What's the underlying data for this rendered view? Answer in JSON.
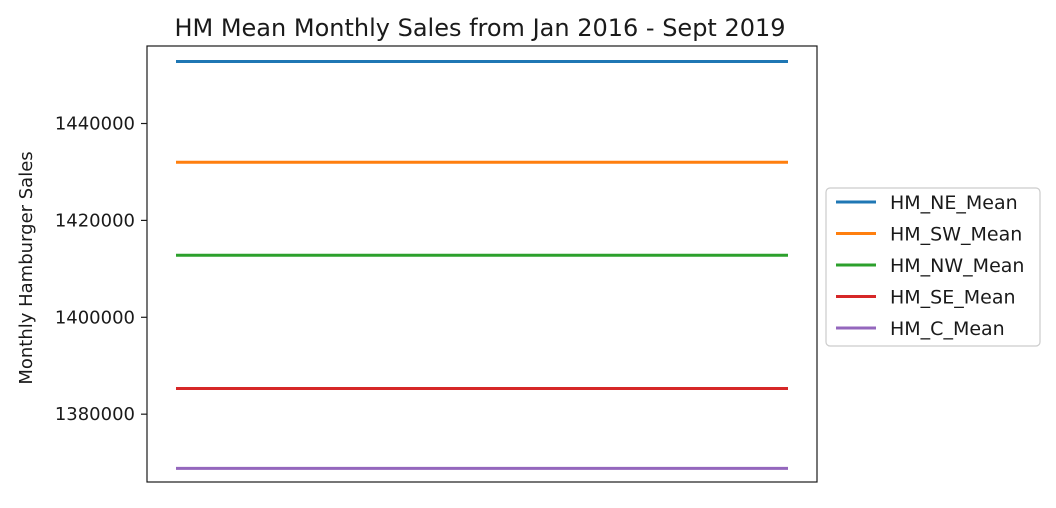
{
  "chart_data": {
    "type": "line",
    "title": "HM Mean Monthly Sales from Jan 2016 - Sept 2019",
    "xlabel": "",
    "ylabel": "Monthly Hamburger Sales",
    "ylim": [
      1366000,
      1456000
    ],
    "yticks": [
      1380000,
      1400000,
      1420000,
      1440000
    ],
    "ytick_labels": [
      "1380000",
      "1400000",
      "1420000",
      "1440000"
    ],
    "x_ticks_visible": false,
    "grid": false,
    "legend_position": "center-right-outside",
    "series": [
      {
        "name": "HM_NE_Mean",
        "color": "#1f77b4",
        "values": [
          1452800,
          1452800
        ]
      },
      {
        "name": "HM_SW_Mean",
        "color": "#ff7f0e",
        "values": [
          1432000,
          1432000
        ]
      },
      {
        "name": "HM_NW_Mean",
        "color": "#2ca02c",
        "values": [
          1412800,
          1412800
        ]
      },
      {
        "name": "HM_SE_Mean",
        "color": "#d62728",
        "values": [
          1385300,
          1385300
        ]
      },
      {
        "name": "HM_C_Mean",
        "color": "#9467bd",
        "values": [
          1368800,
          1368800
        ]
      }
    ]
  }
}
